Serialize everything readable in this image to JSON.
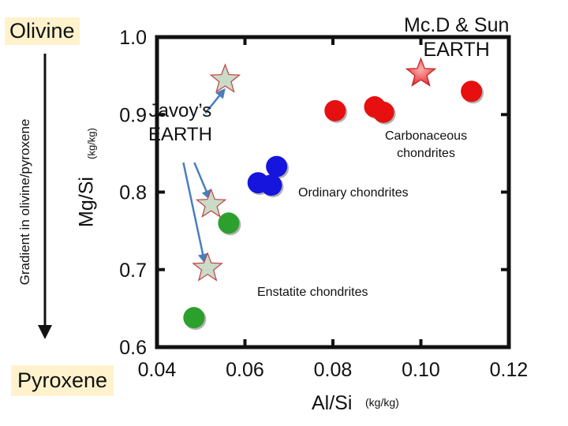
{
  "chart_data": {
    "type": "scatter",
    "xlabel": "Al/Si",
    "xunit": "(kg/kg)",
    "ylabel": "Mg/Si",
    "yunit": "(kg/kg)",
    "xlim": [
      0.04,
      0.12
    ],
    "ylim": [
      0.6,
      1.0
    ],
    "x_ticks": [
      0.04,
      0.06,
      0.08,
      0.1,
      0.12
    ],
    "x_tick_labels": [
      "0.04",
      "0.06",
      "0.08",
      "0.10",
      "0.12"
    ],
    "y_ticks": [
      0.6,
      0.7,
      0.8,
      0.9,
      1.0
    ],
    "y_tick_labels": [
      "0.6",
      "0.7",
      "0.8",
      "0.9",
      "1.0"
    ],
    "side_labels": {
      "top": "Olivine",
      "bottom": "Pyroxene",
      "gradient": "Gradient in olivine/pyroxene"
    },
    "series": [
      {
        "name": "Carbonaceous chondrites",
        "color": "#e61010",
        "marker": "circle",
        "points": [
          [
            0.0805,
            0.905
          ],
          [
            0.0895,
            0.91
          ],
          [
            0.0915,
            0.903
          ],
          [
            0.1115,
            0.93
          ]
        ]
      },
      {
        "name": "Ordinary chondrites",
        "color": "#1515dd",
        "marker": "circle",
        "points": [
          [
            0.0672,
            0.833
          ],
          [
            0.063,
            0.812
          ],
          [
            0.066,
            0.809
          ]
        ]
      },
      {
        "name": "Enstatite chondrites",
        "color": "#2ca02c",
        "marker": "circle",
        "points": [
          [
            0.0563,
            0.76
          ],
          [
            0.0484,
            0.638
          ]
        ]
      },
      {
        "name": "Javoy's EARTH",
        "color": "#c8dcc8",
        "marker": "star",
        "points": [
          [
            0.0555,
            0.945
          ],
          [
            0.0523,
            0.784
          ],
          [
            0.0515,
            0.702
          ]
        ]
      },
      {
        "name": "Mc.D & Sun EARTH",
        "color": "#ee4444",
        "marker": "star",
        "points": [
          [
            0.1,
            0.953
          ]
        ]
      }
    ],
    "annotations": {
      "mcd": [
        "Mc.D & Sun",
        "EARTH"
      ],
      "javoy": [
        "Javoy’s",
        "EARTH"
      ],
      "carbonaceous": [
        "Carbonaceous",
        "chondrites"
      ],
      "ordinary": "Ordinary chondrites",
      "enstatite": "Enstatite chondrites"
    },
    "arrows": [
      {
        "from": [
          0.051,
          0.902
        ],
        "to": [
          0.0553,
          0.932
        ]
      },
      {
        "from": [
          0.0485,
          0.838
        ],
        "to": [
          0.0519,
          0.792
        ]
      },
      {
        "from": [
          0.046,
          0.838
        ],
        "to": [
          0.0508,
          0.71
        ]
      }
    ],
    "grid": false,
    "legend": "none"
  }
}
